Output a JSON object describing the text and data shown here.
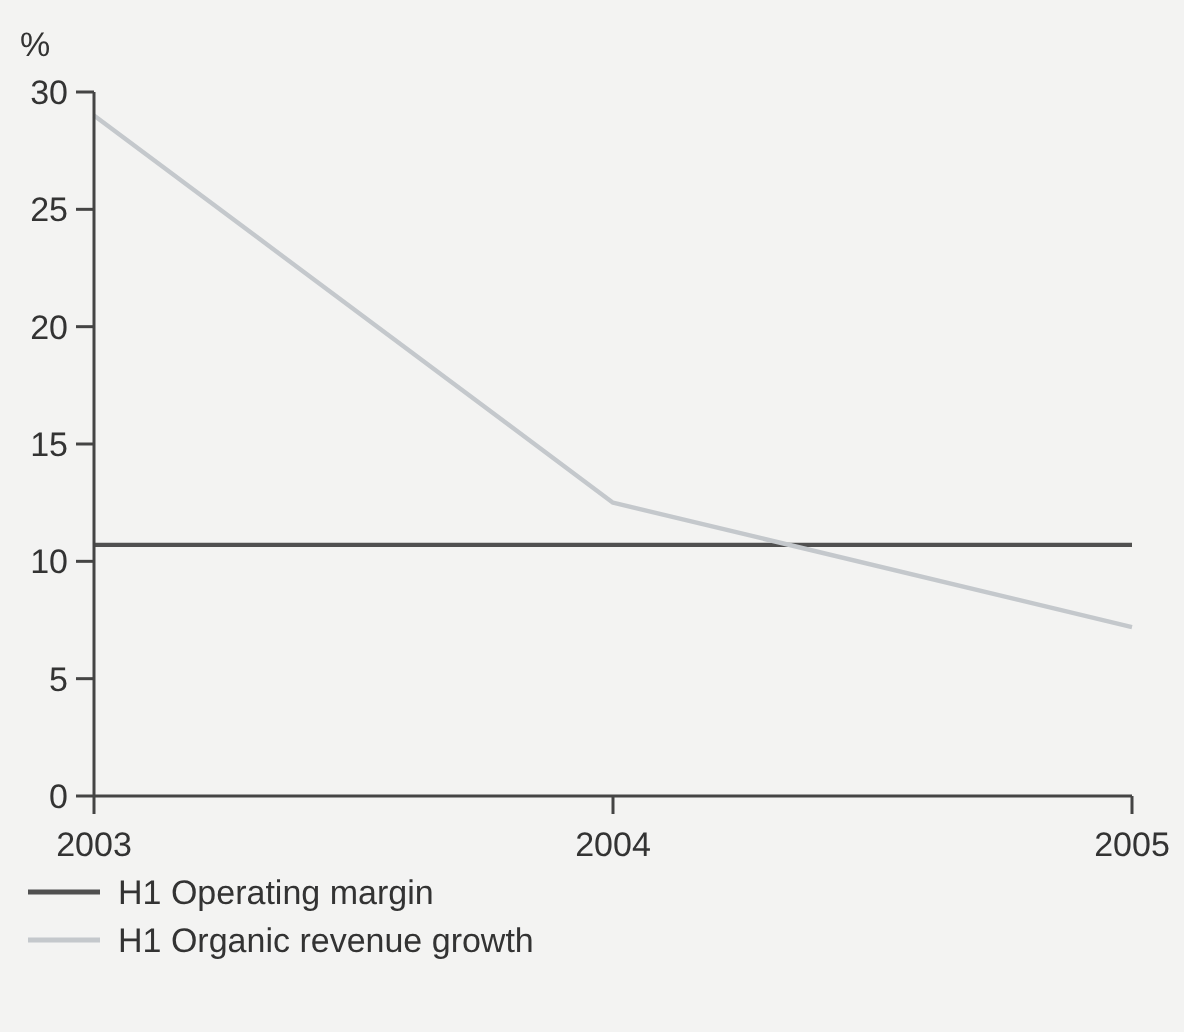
{
  "chart_data": {
    "type": "line",
    "ylabel": "%",
    "categories": [
      "2003",
      "2004",
      "2005"
    ],
    "series": [
      {
        "name": "H1 Operating margin",
        "color": "#505050",
        "values": [
          10.7,
          10.7,
          10.7
        ]
      },
      {
        "name": "H1 Organic revenue growth",
        "color": "#c4c8cc",
        "values": [
          29,
          12.5,
          7.2
        ]
      }
    ],
    "ylim": [
      0,
      30
    ],
    "yticks": [
      0,
      5,
      10,
      15,
      20,
      25,
      30
    ],
    "grid": false,
    "legend": "bottom left",
    "marker": "none",
    "line_style": "solid"
  }
}
